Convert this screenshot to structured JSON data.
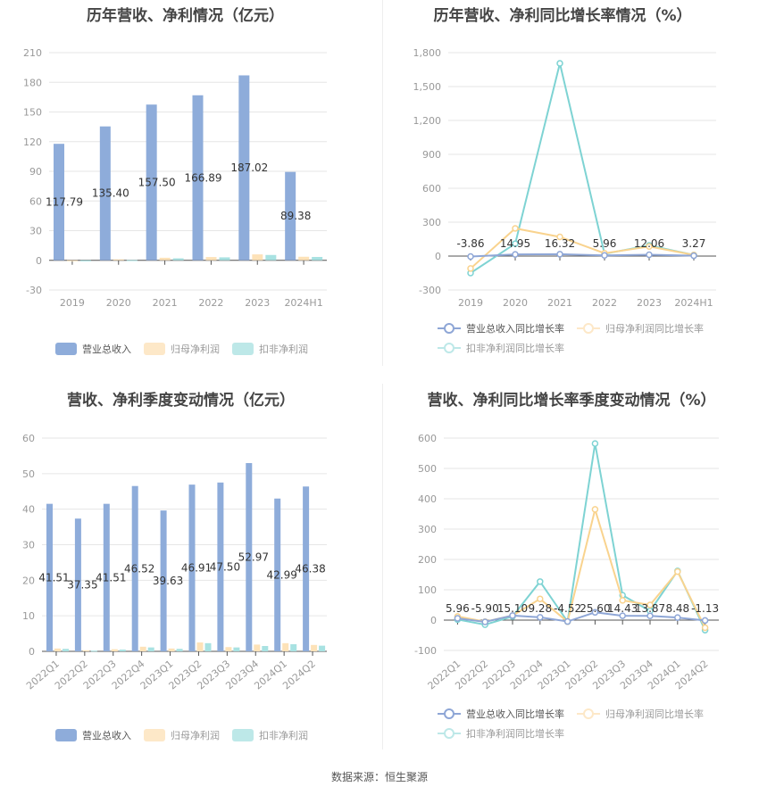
{
  "charts": {
    "annual_amount": {
      "title": "历年营收、净利情况（亿元）",
      "legend": [
        "营业总收入",
        "归母净利润",
        "扣非净利润"
      ],
      "y_ticks": [
        "210",
        "180",
        "150",
        "120",
        "90",
        "60",
        "30",
        "0",
        "-30"
      ],
      "categories": [
        "2019",
        "2020",
        "2021",
        "2022",
        "2023",
        "2024H1"
      ],
      "labels": [
        "117.79",
        "135.40",
        "157.50",
        "166.89",
        "187.02",
        "89.38"
      ]
    },
    "annual_growth": {
      "title": "历年营收、净利同比增长率情况（%）",
      "legend": [
        "营业总收入同比增长率",
        "归母净利润同比增长率",
        "扣非净利润同比增长率"
      ],
      "y_ticks": [
        "1,800",
        "1,500",
        "1,200",
        "900",
        "600",
        "300",
        "0",
        "-300"
      ],
      "categories": [
        "2019",
        "2020",
        "2021",
        "2022",
        "2023",
        "2024H1"
      ],
      "labels": [
        "-3.86",
        "14.95",
        "16.32",
        "5.96",
        "12.06",
        "3.27"
      ]
    },
    "quarterly_amount": {
      "title": "营收、净利季度变动情况（亿元）",
      "legend": [
        "营业总收入",
        "归母净利润",
        "扣非净利润"
      ],
      "y_ticks": [
        "60",
        "50",
        "40",
        "30",
        "20",
        "10",
        "0"
      ],
      "categories": [
        "2022Q1",
        "2022Q2",
        "2022Q3",
        "2022Q4",
        "2023Q1",
        "2023Q2",
        "2023Q3",
        "2023Q4",
        "2024Q1",
        "2024Q2"
      ],
      "labels": [
        "41.51",
        "37.35",
        "41.51",
        "46.52",
        "39.63",
        "46.91",
        "47.50",
        "52.97",
        "42.99",
        "46.38"
      ]
    },
    "quarterly_growth": {
      "title": "营收、净利同比增长率季度变动情况（%）",
      "legend": [
        "营业总收入同比增长率",
        "归母净利润同比增长率",
        "扣非净利润同比增长率"
      ],
      "y_ticks": [
        "600",
        "500",
        "400",
        "300",
        "200",
        "100",
        "0",
        "-100"
      ],
      "categories": [
        "2022Q1",
        "2022Q2",
        "2022Q3",
        "2022Q4",
        "2023Q1",
        "2023Q2",
        "2023Q3",
        "2023Q4",
        "2024Q1",
        "2024Q2"
      ],
      "labels": [
        "5.96",
        "-5.90",
        "15.10",
        "9.28",
        "-4.52",
        "25.60",
        "14.43",
        "13.87",
        "8.48",
        "-1.13"
      ]
    }
  },
  "colors": {
    "revenue": "#8eacda",
    "net_profit": "#fde2b8",
    "net_profit_line": "#f9d38e",
    "deducted_profit": "#a8e2e2",
    "deducted_profit_line": "#7ed3d3",
    "revenue_line": "#8ea6d6"
  },
  "source": "数据来源：恒生聚源",
  "chart_data": [
    {
      "type": "bar",
      "title": "历年营收、净利情况（亿元）",
      "categories": [
        "2019",
        "2020",
        "2021",
        "2022",
        "2023",
        "2024H1"
      ],
      "series": [
        {
          "name": "营业总收入",
          "values": [
            117.79,
            135.4,
            157.5,
            166.89,
            187.02,
            89.38
          ]
        },
        {
          "name": "归母净利润",
          "values": [
            -0.5,
            1.0,
            2.6,
            3.3,
            6.0,
            3.6
          ]
        },
        {
          "name": "扣非净利润",
          "values": [
            -1.0,
            0.2,
            2.0,
            3.0,
            5.4,
            3.4
          ]
        }
      ],
      "xlabel": "",
      "ylabel": "",
      "ylim": [
        -30,
        210
      ],
      "legend_position": "bottom",
      "grid": true
    },
    {
      "type": "line",
      "title": "历年营收、净利同比增长率情况（%）",
      "categories": [
        "2019",
        "2020",
        "2021",
        "2022",
        "2023",
        "2024H1"
      ],
      "series": [
        {
          "name": "营业总收入同比增长率",
          "values": [
            -3.86,
            14.95,
            16.32,
            5.96,
            12.06,
            3.27
          ]
        },
        {
          "name": "归母净利润同比增长率",
          "values": [
            -110,
            245,
            170,
            25,
            85,
            10
          ]
        },
        {
          "name": "扣非净利润同比增长率",
          "values": [
            -150,
            110,
            1705,
            20,
            95,
            10
          ]
        }
      ],
      "xlabel": "",
      "ylabel": "",
      "ylim": [
        -300,
        1800
      ],
      "legend_position": "bottom",
      "grid": true
    },
    {
      "type": "bar",
      "title": "营收、净利季度变动情况（亿元）",
      "categories": [
        "2022Q1",
        "2022Q2",
        "2022Q3",
        "2022Q4",
        "2023Q1",
        "2023Q2",
        "2023Q3",
        "2023Q4",
        "2024Q1",
        "2024Q2"
      ],
      "series": [
        {
          "name": "营业总收入",
          "values": [
            41.51,
            37.35,
            41.51,
            46.52,
            39.63,
            46.91,
            47.5,
            52.97,
            42.99,
            46.38
          ]
        },
        {
          "name": "归母净利润",
          "values": [
            0.8,
            0.3,
            0.6,
            1.3,
            0.8,
            2.5,
            1.2,
            1.9,
            2.3,
            1.8
          ]
        },
        {
          "name": "扣非净利润",
          "values": [
            0.7,
            0.2,
            0.5,
            1.1,
            0.7,
            2.3,
            1.1,
            1.5,
            2.0,
            1.6
          ]
        }
      ],
      "xlabel": "",
      "ylabel": "",
      "ylim": [
        0,
        60
      ],
      "legend_position": "bottom",
      "grid": true
    },
    {
      "type": "line",
      "title": "营收、净利同比增长率季度变动情况（%）",
      "categories": [
        "2022Q1",
        "2022Q2",
        "2022Q3",
        "2022Q4",
        "2023Q1",
        "2023Q2",
        "2023Q3",
        "2023Q4",
        "2024Q1",
        "2024Q2"
      ],
      "series": [
        {
          "name": "营业总收入同比增长率",
          "values": [
            5.96,
            -5.9,
            15.1,
            9.28,
            -4.52,
            25.6,
            14.43,
            13.87,
            8.48,
            -1.13
          ]
        },
        {
          "name": "归母净利润同比增长率",
          "values": [
            12,
            -5,
            15,
            70,
            -5,
            365,
            65,
            50,
            160,
            -25
          ]
        },
        {
          "name": "扣非净利润同比增长率",
          "values": [
            2,
            -15,
            12,
            127,
            -5,
            582,
            82,
            30,
            162,
            -33
          ]
        }
      ],
      "xlabel": "",
      "ylabel": "",
      "ylim": [
        -100,
        600
      ],
      "legend_position": "bottom",
      "grid": true
    }
  ]
}
